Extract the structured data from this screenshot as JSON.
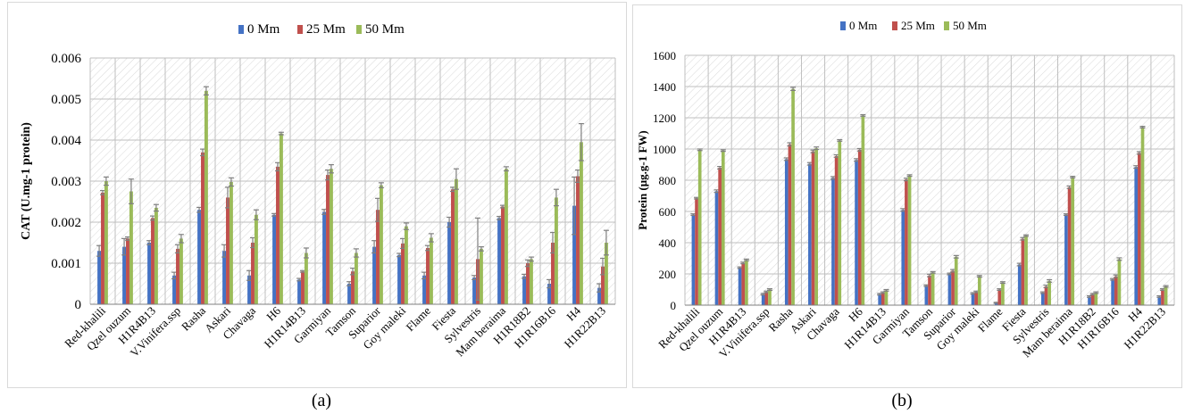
{
  "captions": {
    "a": "(a)",
    "b": "(b)"
  },
  "colors": {
    "s0": "#4472C4",
    "s1": "#C0504D",
    "s2": "#9BBB59",
    "grid": "#bfbfbf",
    "hatch": "#d9d9d9",
    "errbar": "#7f7f7f"
  },
  "chart_data": [
    {
      "type": "bar",
      "ylabel": "CAT (U.mg-1 protein)",
      "xlabel": "",
      "ylim": [
        0,
        0.006
      ],
      "yticks": [
        "0",
        "0.001",
        "0.002",
        "0.003",
        "0.004",
        "0.005",
        "0.006"
      ],
      "yticks_values": [
        0,
        0.001,
        0.002,
        0.003,
        0.004,
        0.005,
        0.006
      ],
      "grid": true,
      "legend_position": "top",
      "categories": [
        "Red-khalili",
        "Qzel ouzum",
        "H1R4B13",
        "V.Vinifera.ssp",
        "Rasha",
        "Askari",
        "Chavaga",
        "H6",
        "H1R14B13",
        "Garmiyan",
        "Tamson",
        "Suparior",
        "Goy maleki",
        "Flame",
        "Fiesta",
        "Sylvestris",
        "Mam beraima",
        "H1R18B2",
        "H1R16B16",
        "H4",
        "H1R22B13"
      ],
      "series": [
        {
          "name": "0 Mm",
          "values": [
            0.0013,
            0.0014,
            0.0015,
            0.0007,
            0.0023,
            0.0013,
            0.0007,
            0.00218,
            0.0006,
            0.00225,
            0.0005,
            0.0014,
            0.0012,
            0.0007,
            0.002,
            0.00065,
            0.0021,
            0.00068,
            0.0005,
            0.0024,
            0.0004
          ],
          "errors": [
            0.00013,
            0.0002,
            5e-05,
            8e-05,
            6e-05,
            0.00015,
            0.00012,
            3e-05,
            3e-05,
            6e-05,
            5e-05,
            0.00015,
            4e-05,
            8e-05,
            0.00012,
            5e-05,
            4e-05,
            5e-05,
            0.0001,
            0.0007,
            0.0001
          ]
        },
        {
          "name": "25 Mm",
          "values": [
            0.00272,
            0.0016,
            0.0021,
            0.00135,
            0.0037,
            0.0026,
            0.0015,
            0.00335,
            0.0008,
            0.00315,
            0.0008,
            0.0023,
            0.00148,
            0.00137,
            0.0028,
            0.0011,
            0.00238,
            0.001,
            0.0015,
            0.00312,
            0.00092
          ],
          "errors": [
            5e-05,
            4e-05,
            5e-05,
            0.0001,
            8e-05,
            0.00025,
            0.00012,
            0.0001,
            2e-05,
            0.00012,
            8e-05,
            0.00028,
            0.00012,
            6e-05,
            5e-05,
            0.001,
            3e-05,
            8e-05,
            0.00025,
            0.00015,
            0.0002
          ]
        },
        {
          "name": "50 Mm",
          "values": [
            0.003,
            0.00275,
            0.00235,
            0.0016,
            0.0052,
            0.00298,
            0.00218,
            0.00416,
            0.00125,
            0.0033,
            0.00125,
            0.0029,
            0.0019,
            0.00162,
            0.00305,
            0.00135,
            0.0033,
            0.0011,
            0.0026,
            0.00395,
            0.0015
          ],
          "errors": [
            0.0001,
            0.0003,
            8e-05,
            0.0001,
            0.0001,
            0.0001,
            0.00012,
            3e-05,
            0.00012,
            0.0001,
            0.0001,
            6e-05,
            8e-05,
            0.0001,
            0.00025,
            5e-05,
            5e-05,
            5e-05,
            0.0002,
            0.00045,
            0.0003
          ]
        }
      ]
    },
    {
      "type": "bar",
      "ylabel": "Protein (μg.g-1 FW)",
      "xlabel": "",
      "ylim": [
        0,
        1600
      ],
      "yticks": [
        "0",
        "200",
        "400",
        "600",
        "800",
        "1000",
        "1200",
        "1400",
        "1600"
      ],
      "yticks_values": [
        0,
        200,
        400,
        600,
        800,
        1000,
        1200,
        1400,
        1600
      ],
      "grid": true,
      "legend_position": "top",
      "categories": [
        "Red-khalili",
        "Qzel ouzum",
        "H1R4B13",
        "V.Vinifera.ssp",
        "Rasha",
        "Askari",
        "Chavaga",
        "H6",
        "H1R14B13",
        "Garmiyan",
        "Tamson",
        "Suparior",
        "Goy maleki",
        "Flame",
        "Fiesta",
        "Sylvestris",
        "Mam beraima",
        "H1R18B2",
        "H1R16B16",
        "H4",
        "H1R22B13"
      ],
      "series": [
        {
          "name": "0 Mm",
          "values": [
            580,
            730,
            240,
            70,
            935,
            905,
            815,
            930,
            70,
            610,
            125,
            200,
            75,
            15,
            260,
            80,
            580,
            55,
            165,
            885,
            55
          ],
          "errors": [
            5,
            8,
            5,
            5,
            8,
            8,
            8,
            8,
            5,
            8,
            5,
            5,
            5,
            3,
            8,
            5,
            5,
            5,
            5,
            8,
            5
          ]
        },
        {
          "name": "25 Mm",
          "values": [
            685,
            880,
            270,
            85,
            1030,
            985,
            955,
            995,
            80,
            805,
            190,
            220,
            85,
            100,
            425,
            120,
            755,
            70,
            185,
            975,
            100
          ],
          "errors": [
            5,
            8,
            5,
            5,
            10,
            8,
            8,
            8,
            5,
            8,
            8,
            8,
            5,
            5,
            8,
            8,
            8,
            5,
            8,
            8,
            5
          ]
        },
        {
          "name": "50 Mm",
          "values": [
            995,
            990,
            290,
            100,
            1385,
            1005,
            1055,
            1215,
            95,
            830,
            210,
            310,
            185,
            145,
            445,
            155,
            820,
            80,
            295,
            1140,
            120
          ],
          "errors": [
            5,
            5,
            5,
            5,
            10,
            8,
            5,
            5,
            5,
            5,
            5,
            8,
            5,
            5,
            5,
            8,
            5,
            5,
            8,
            5,
            5
          ]
        }
      ]
    }
  ]
}
